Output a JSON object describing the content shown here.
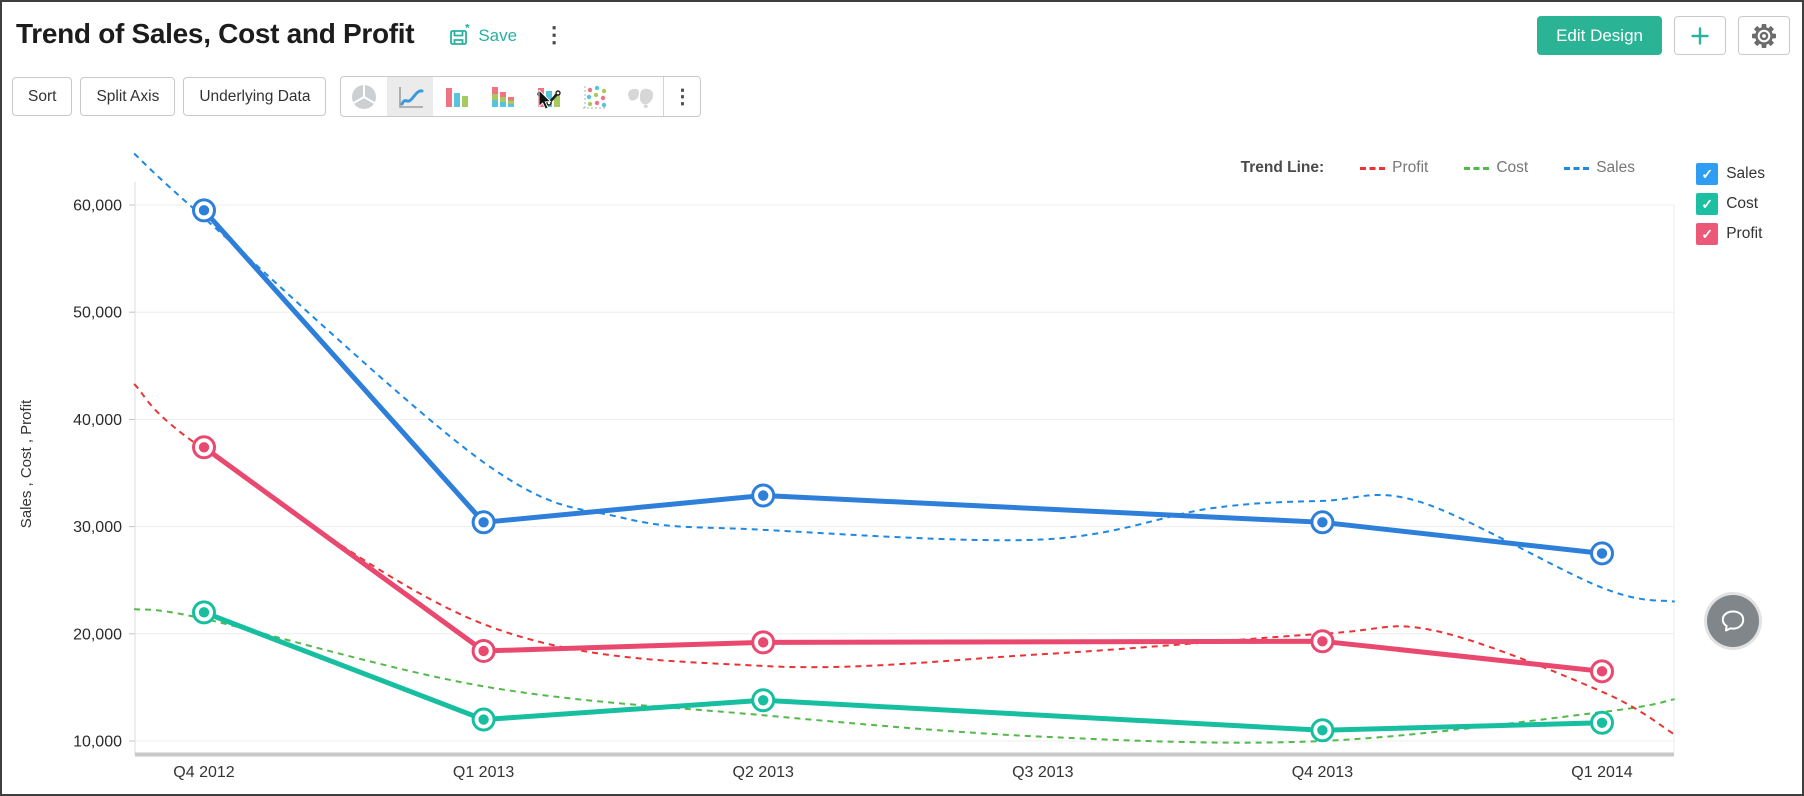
{
  "header": {
    "title": "Trend of Sales, Cost and Profit",
    "save_label": "Save",
    "more_menu": "⋮",
    "edit_design_label": "Edit Design",
    "accent_color": "#2ab394",
    "save_color": "#28b0a0"
  },
  "toolbar": {
    "buttons": [
      {
        "label": "Sort"
      },
      {
        "label": "Split Axis"
      },
      {
        "label": "Underlying Data"
      }
    ],
    "chart_types": [
      "pie",
      "line",
      "bar",
      "stacked-bar",
      "combo",
      "scatter",
      "map"
    ],
    "selected_chart_type": "line",
    "more_menu": "⋮"
  },
  "trend_legend": {
    "label": "Trend Line:",
    "items": [
      {
        "name": "Profit",
        "color": "#ea3434"
      },
      {
        "name": "Cost",
        "color": "#53b94a"
      },
      {
        "name": "Sales",
        "color": "#1e88e5"
      }
    ]
  },
  "series_legend": [
    {
      "name": "Sales",
      "color": "#2e9df2",
      "checked": true
    },
    {
      "name": "Cost",
      "color": "#1dbfa2",
      "checked": true
    },
    {
      "name": "Profit",
      "color": "#ec5878",
      "checked": true
    }
  ],
  "chart_data": {
    "type": "line",
    "title": "Trend of Sales, Cost and Profit",
    "ylabel": "Sales , Cost , Profit",
    "categories": [
      "Q4 2012",
      "Q1 2013",
      "Q2 2013",
      "Q3 2013",
      "Q4 2013",
      "Q1 2014"
    ],
    "yticks": [
      10000,
      20000,
      30000,
      40000,
      50000,
      60000
    ],
    "ytick_labels": [
      "10,000",
      "20,000",
      "30,000",
      "40,000",
      "50,000",
      "60,000"
    ],
    "ylim": [
      10000,
      60000
    ],
    "grid": true,
    "legend_position": "right",
    "series": [
      {
        "name": "Sales",
        "color": "#2e7fd9",
        "values": [
          59500,
          30400,
          32900,
          null,
          30400,
          27500
        ]
      },
      {
        "name": "Cost",
        "color": "#17bfa0",
        "values": [
          22000,
          12000,
          13800,
          null,
          11000,
          11700
        ]
      },
      {
        "name": "Profit",
        "color": "#e9496f",
        "values": [
          37400,
          18400,
          19200,
          null,
          19300,
          16500
        ]
      }
    ],
    "trend_lines": [
      {
        "name": "Sales",
        "color": "#1e88e5",
        "points": [
          [
            -0.25,
            64800
          ],
          [
            0,
            58800
          ],
          [
            1,
            36000
          ],
          [
            1.5,
            30800
          ],
          [
            2,
            29700
          ],
          [
            3,
            28800
          ],
          [
            3.6,
            31700
          ],
          [
            4,
            32400
          ],
          [
            4.35,
            32300
          ],
          [
            5,
            24300
          ],
          [
            5.26,
            23000
          ]
        ]
      },
      {
        "name": "Cost",
        "color": "#53b94a",
        "points": [
          [
            -0.25,
            22300
          ],
          [
            0,
            21400
          ],
          [
            1,
            15100
          ],
          [
            2,
            12400
          ],
          [
            3,
            10400
          ],
          [
            4,
            10000
          ],
          [
            5,
            12700
          ],
          [
            5.26,
            13900
          ]
        ]
      },
      {
        "name": "Profit",
        "color": "#ea3434",
        "points": [
          [
            -0.25,
            43300
          ],
          [
            0,
            37200
          ],
          [
            1,
            20900
          ],
          [
            2,
            17000
          ],
          [
            3,
            18100
          ],
          [
            4,
            20000
          ],
          [
            4.4,
            20300
          ],
          [
            5,
            14600
          ],
          [
            5.26,
            10600
          ]
        ]
      }
    ]
  },
  "chat": {
    "tooltip": "feedback-chat"
  }
}
